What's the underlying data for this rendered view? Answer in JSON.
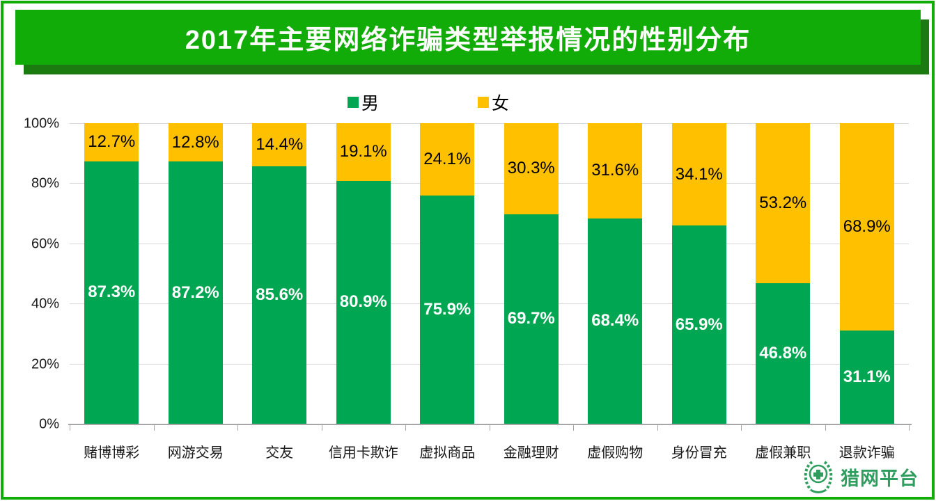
{
  "title": "2017年主要网络诈骗类型举报情况的性别分布",
  "legend": {
    "male": "男",
    "female": "女"
  },
  "colors": {
    "male": "#00A651",
    "female": "#FFC000",
    "banner": "#12AC08",
    "banner_shadow": "#1B7A10",
    "frame": "#12AC08",
    "grid": "#D9D9D9",
    "axis": "#A6A6A6",
    "logo": "#2E9E5F"
  },
  "chart_data": {
    "type": "bar",
    "stacked": true,
    "title": "2017年主要网络诈骗类型举报情况的性别分布",
    "categories": [
      "赌博博彩",
      "网游交易",
      "交友",
      "信用卡欺诈",
      "虚拟商品",
      "金融理财",
      "虚假购物",
      "身份冒充",
      "虚假兼职",
      "退款诈骗"
    ],
    "series": [
      {
        "name": "男",
        "color": "#00A651",
        "values": [
          87.3,
          87.2,
          85.6,
          80.9,
          75.9,
          69.7,
          68.4,
          65.9,
          46.8,
          31.1
        ]
      },
      {
        "name": "女",
        "color": "#FFC000",
        "values": [
          12.7,
          12.8,
          14.4,
          19.1,
          24.1,
          30.3,
          31.6,
          34.1,
          53.2,
          68.9
        ]
      }
    ],
    "xlabel": "",
    "ylabel": "",
    "ylim": [
      0,
      100
    ],
    "y_ticks": [
      "0%",
      "20%",
      "40%",
      "60%",
      "80%",
      "100%"
    ],
    "grid": true,
    "legend_position": "top",
    "value_suffix": "%"
  },
  "logo": {
    "text": "猎网平台"
  }
}
